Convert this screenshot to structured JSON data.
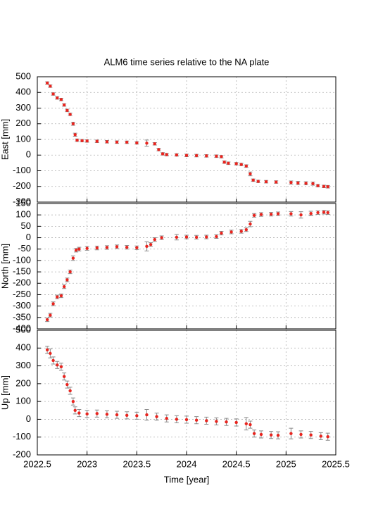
{
  "chart_data": [
    {
      "type": "scatter",
      "title": "ALM6 time series relative to the NA plate",
      "ylabel": "East [mm]",
      "xlim": [
        2022.5,
        2025.5
      ],
      "xticks": [
        2022.5,
        2023,
        2023.5,
        2024,
        2024.5,
        2025,
        2025.5
      ],
      "ylim": [
        -300,
        500
      ],
      "yticks": [
        -300,
        -200,
        -100,
        0,
        100,
        200,
        300,
        400,
        500
      ],
      "grid": true,
      "color": "#e8251f",
      "error_color": "#8a8a8a",
      "x": [
        2022.6,
        2022.63,
        2022.66,
        2022.7,
        2022.74,
        2022.77,
        2022.8,
        2022.83,
        2022.86,
        2022.88,
        2022.9,
        2022.95,
        2023.0,
        2023.1,
        2023.2,
        2023.3,
        2023.4,
        2023.5,
        2023.6,
        2023.68,
        2023.72,
        2023.76,
        2023.8,
        2023.9,
        2024.0,
        2024.1,
        2024.2,
        2024.3,
        2024.35,
        2024.38,
        2024.42,
        2024.5,
        2024.55,
        2024.6,
        2024.64,
        2024.67,
        2024.72,
        2024.8,
        2024.9,
        2025.05,
        2025.12,
        2025.2,
        2025.27,
        2025.32,
        2025.38,
        2025.42
      ],
      "y": [
        460,
        440,
        390,
        365,
        355,
        320,
        285,
        260,
        200,
        130,
        95,
        92,
        90,
        88,
        85,
        83,
        82,
        78,
        76,
        72,
        35,
        8,
        3,
        1,
        -2,
        -3,
        -5,
        -7,
        -10,
        -45,
        -52,
        -55,
        -60,
        -70,
        -120,
        -160,
        -168,
        -170,
        -172,
        -175,
        -178,
        -180,
        -182,
        -195,
        -200,
        -202
      ],
      "errors": [
        8,
        8,
        8,
        8,
        8,
        8,
        8,
        8,
        10,
        10,
        8,
        8,
        8,
        8,
        8,
        8,
        8,
        8,
        20,
        8,
        8,
        8,
        8,
        8,
        8,
        8,
        8,
        8,
        8,
        8,
        8,
        8,
        8,
        8,
        12,
        8,
        8,
        8,
        8,
        10,
        10,
        10,
        10,
        8,
        8,
        8
      ]
    },
    {
      "type": "scatter",
      "ylabel": "North [mm]",
      "xlim": [
        2022.5,
        2025.5
      ],
      "xticks": [
        2022.5,
        2023,
        2023.5,
        2024,
        2024.5,
        2025,
        2025.5
      ],
      "ylim": [
        -400,
        150
      ],
      "yticks": [
        -400,
        -350,
        -300,
        -250,
        -200,
        -150,
        -100,
        -50,
        0,
        50,
        100,
        150
      ],
      "grid": true,
      "color": "#e8251f",
      "error_color": "#8a8a8a",
      "x": [
        2022.6,
        2022.63,
        2022.66,
        2022.7,
        2022.74,
        2022.77,
        2022.8,
        2022.83,
        2022.86,
        2022.89,
        2022.92,
        2023.0,
        2023.1,
        2023.2,
        2023.3,
        2023.4,
        2023.5,
        2023.6,
        2023.64,
        2023.68,
        2023.75,
        2023.9,
        2024.0,
        2024.1,
        2024.2,
        2024.3,
        2024.35,
        2024.45,
        2024.55,
        2024.6,
        2024.64,
        2024.68,
        2024.75,
        2024.85,
        2024.92,
        2025.05,
        2025.15,
        2025.25,
        2025.32,
        2025.38,
        2025.42
      ],
      "y": [
        -360,
        -340,
        -290,
        -260,
        -255,
        -215,
        -185,
        -150,
        -90,
        -55,
        -50,
        -47,
        -45,
        -43,
        -40,
        -42,
        -44,
        -38,
        -30,
        -8,
        0,
        2,
        3,
        2,
        3,
        5,
        20,
        25,
        28,
        35,
        60,
        98,
        102,
        103,
        105,
        105,
        100,
        106,
        110,
        112,
        110
      ],
      "errors": [
        8,
        8,
        8,
        8,
        8,
        8,
        8,
        8,
        10,
        8,
        8,
        8,
        8,
        8,
        8,
        8,
        8,
        20,
        8,
        8,
        8,
        12,
        8,
        8,
        8,
        8,
        8,
        8,
        8,
        8,
        12,
        8,
        8,
        8,
        8,
        10,
        14,
        10,
        8,
        8,
        8
      ]
    },
    {
      "type": "scatter",
      "ylabel": "Up [mm]",
      "xlabel": "Time [year]",
      "xlim": [
        2022.5,
        2025.5
      ],
      "xticks": [
        2022.5,
        2023,
        2023.5,
        2024,
        2024.5,
        2025,
        2025.5
      ],
      "ylim": [
        -200,
        500
      ],
      "yticks": [
        -200,
        -100,
        0,
        100,
        200,
        300,
        400,
        500
      ],
      "grid": true,
      "color": "#e8251f",
      "error_color": "#8a8a8a",
      "x": [
        2022.6,
        2022.63,
        2022.66,
        2022.7,
        2022.74,
        2022.77,
        2022.8,
        2022.83,
        2022.86,
        2022.88,
        2022.92,
        2023.0,
        2023.1,
        2023.2,
        2023.3,
        2023.4,
        2023.5,
        2023.6,
        2023.7,
        2023.8,
        2023.9,
        2024.0,
        2024.1,
        2024.2,
        2024.3,
        2024.4,
        2024.5,
        2024.6,
        2024.64,
        2024.68,
        2024.75,
        2024.85,
        2024.92,
        2025.05,
        2025.15,
        2025.25,
        2025.35,
        2025.42
      ],
      "y": [
        390,
        370,
        330,
        305,
        295,
        240,
        195,
        160,
        100,
        50,
        35,
        30,
        32,
        28,
        25,
        22,
        20,
        25,
        15,
        5,
        0,
        -2,
        -5,
        -8,
        -12,
        -15,
        -18,
        -25,
        -30,
        -80,
        -85,
        -88,
        -90,
        -80,
        -85,
        -88,
        -95,
        -98
      ],
      "errors": [
        20,
        25,
        20,
        20,
        20,
        20,
        20,
        20,
        20,
        20,
        20,
        20,
        20,
        20,
        20,
        20,
        20,
        30,
        20,
        20,
        20,
        20,
        20,
        20,
        20,
        20,
        20,
        35,
        20,
        20,
        20,
        20,
        20,
        30,
        20,
        20,
        20,
        20
      ]
    }
  ]
}
